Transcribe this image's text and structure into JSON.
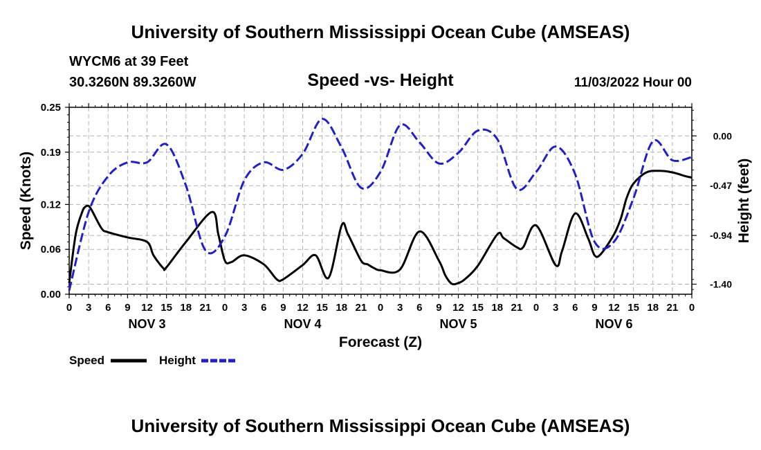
{
  "header": {
    "title": "University of Southern Mississippi Ocean Cube (AMSEAS)",
    "station": "WYCM6 at 39 Feet",
    "coords": "30.3260N  89.3260W",
    "date": "11/03/2022 Hour 00",
    "footer_title": "University of Southern Mississippi Ocean Cube (AMSEAS)"
  },
  "chart_data": {
    "type": "line",
    "title": "Speed -vs- Height",
    "xlabel": "Forecast (Z)",
    "ylabel": "Speed (Knots)",
    "y2label": "Height (feet)",
    "xlim": [
      0,
      96
    ],
    "ylim": [
      0,
      0.25
    ],
    "y2lim": [
      -1.495,
      0.27
    ],
    "grid": true,
    "x_ticks": [
      0,
      3,
      6,
      9,
      12,
      15,
      18,
      21,
      24,
      27,
      30,
      33,
      36,
      39,
      42,
      45,
      48,
      51,
      54,
      57,
      60,
      63,
      66,
      69,
      72,
      75,
      78,
      81,
      84,
      87,
      90,
      93,
      96
    ],
    "x_tick_labels": [
      "0",
      "3",
      "6",
      "9",
      "12",
      "15",
      "18",
      "21",
      "0",
      "3",
      "6",
      "9",
      "12",
      "15",
      "18",
      "21",
      "0",
      "3",
      "6",
      "9",
      "12",
      "15",
      "18",
      "21",
      "0",
      "3",
      "6",
      "9",
      "12",
      "15",
      "18",
      "21",
      "0"
    ],
    "y_ticks": [
      0.0,
      0.06,
      0.12,
      0.19,
      0.25
    ],
    "y_tick_labels": [
      "0.00",
      "0.06",
      "0.12",
      "0.19",
      "0.25"
    ],
    "y2_ticks": [
      0.0,
      -0.47,
      -0.94,
      -1.4
    ],
    "y2_tick_labels": [
      "0.00",
      "-0.47",
      "-0.94",
      "-1.40"
    ],
    "day_labels": [
      {
        "label": "NOV 3",
        "x": 12
      },
      {
        "label": "NOV 4",
        "x": 36
      },
      {
        "label": "NOV 5",
        "x": 60
      },
      {
        "label": "NOV 6",
        "x": 84
      }
    ],
    "series": [
      {
        "name": "Speed",
        "axis": "left",
        "color": "#000000",
        "style": "solid",
        "x": [
          0,
          1,
          2,
          2.5,
          3,
          3.5,
          5,
          6,
          9,
          12,
          13,
          14.5,
          15,
          18,
          22,
          23,
          24,
          25,
          27,
          30,
          32,
          33,
          36,
          38,
          40,
          42,
          43,
          45,
          46,
          47,
          48,
          51,
          54,
          57,
          58,
          59,
          60,
          61,
          63,
          66,
          67,
          69,
          70,
          72,
          75,
          76,
          78,
          80,
          81,
          82,
          84,
          85,
          85.5,
          86,
          87,
          89,
          91,
          93,
          95,
          96
        ],
        "values": [
          0.015,
          0.08,
          0.11,
          0.117,
          0.118,
          0.112,
          0.088,
          0.083,
          0.076,
          0.07,
          0.052,
          0.035,
          0.036,
          0.07,
          0.11,
          0.08,
          0.045,
          0.043,
          0.052,
          0.04,
          0.02,
          0.02,
          0.039,
          0.052,
          0.022,
          0.092,
          0.08,
          0.045,
          0.04,
          0.035,
          0.032,
          0.033,
          0.084,
          0.045,
          0.025,
          0.014,
          0.015,
          0.02,
          0.038,
          0.08,
          0.075,
          0.063,
          0.063,
          0.092,
          0.039,
          0.058,
          0.108,
          0.075,
          0.052,
          0.054,
          0.08,
          0.1,
          0.115,
          0.13,
          0.148,
          0.163,
          0.165,
          0.163,
          0.158,
          0.156
        ]
      },
      {
        "name": "Height",
        "axis": "right",
        "color": "#1f1fd1",
        "style": "dashed",
        "x": [
          0,
          3,
          6,
          9,
          12,
          15,
          18,
          21,
          24,
          27,
          30,
          33,
          36,
          39,
          42,
          45,
          48,
          51,
          54,
          57,
          60,
          63,
          66,
          69,
          72,
          75,
          78,
          81,
          84,
          87,
          90,
          93,
          96
        ],
        "values": [
          -1.46,
          -0.72,
          -0.38,
          -0.25,
          -0.25,
          -0.08,
          -0.47,
          -1.08,
          -0.95,
          -0.42,
          -0.25,
          -0.32,
          -0.17,
          0.16,
          -0.11,
          -0.49,
          -0.34,
          0.1,
          -0.06,
          -0.26,
          -0.16,
          0.05,
          -0.03,
          -0.5,
          -0.34,
          -0.1,
          -0.36,
          -1.0,
          -1.0,
          -0.59,
          -0.05,
          -0.23,
          -0.2
        ]
      }
    ],
    "legend": [
      {
        "name": "Speed",
        "color": "#000000",
        "style": "solid"
      },
      {
        "name": "Height",
        "color": "#1f1fd1",
        "style": "dashed"
      }
    ],
    "legend_position": "bottom-left"
  }
}
